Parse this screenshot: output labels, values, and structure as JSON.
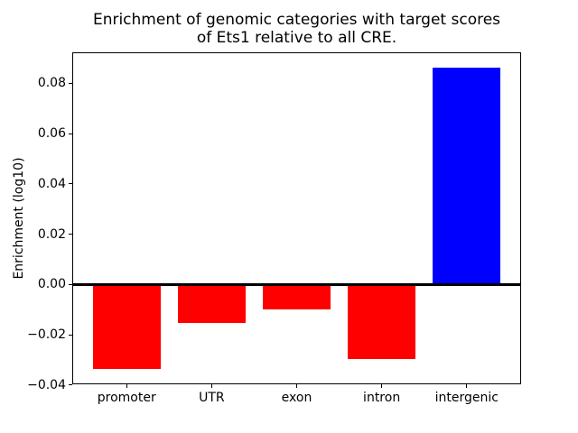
{
  "figure": {
    "title": "Enrichment of genomic categories with target scores\nof Ets1 relative to all CRE.",
    "ylabel": "Enrichment (log10)"
  },
  "chart_data": {
    "type": "bar",
    "title": "Enrichment of genomic categories with target scores of Ets1 relative to all CRE.",
    "xlabel": "",
    "ylabel": "Enrichment (log10)",
    "categories": [
      "promoter",
      "UTR",
      "exon",
      "intron",
      "intergenic"
    ],
    "values": [
      -0.0337,
      -0.0153,
      -0.0098,
      -0.0296,
      0.0863
    ],
    "bar_colors": [
      "#ff0000",
      "#ff0000",
      "#ff0000",
      "#ff0000",
      "#0000ff"
    ],
    "ylim": [
      -0.0397,
      0.0923
    ],
    "yticks": [
      -0.04,
      -0.02,
      0.0,
      0.02,
      0.04,
      0.06,
      0.08
    ],
    "ytick_labels": [
      "−0.04",
      "−0.02",
      "0.00",
      "0.02",
      "0.04",
      "0.06",
      "0.08"
    ],
    "grid": false,
    "legend": false,
    "zero_line": true,
    "axes_color": "#000000",
    "background": "#ffffff"
  }
}
